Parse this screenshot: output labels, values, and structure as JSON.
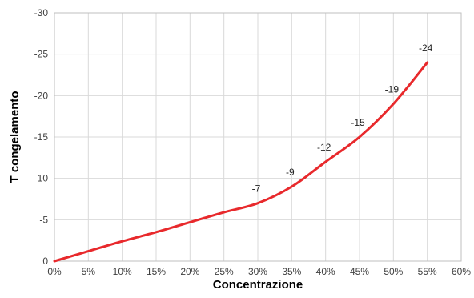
{
  "chart_data": {
    "type": "line",
    "title": "",
    "xlabel": "Concentrazione",
    "ylabel": "T congelamento",
    "x": [
      0,
      5,
      10,
      15,
      20,
      25,
      30,
      35,
      40,
      45,
      50,
      55
    ],
    "x_unit": "%",
    "series": [
      {
        "values": [
          0,
          -1.2,
          -2.4,
          -3.5,
          -4.7,
          -5.9,
          -7,
          -9,
          -12,
          -15,
          -19,
          -24
        ],
        "color": "#e8292c"
      }
    ],
    "data_labels": [
      {
        "x": 30,
        "y": -7,
        "text": "-7"
      },
      {
        "x": 35,
        "y": -9,
        "text": "-9"
      },
      {
        "x": 40,
        "y": -12,
        "text": "-12"
      },
      {
        "x": 45,
        "y": -15,
        "text": "-15"
      },
      {
        "x": 50,
        "y": -19,
        "text": "-19"
      },
      {
        "x": 55,
        "y": -24,
        "text": "-24"
      }
    ],
    "xlim": [
      0,
      60
    ],
    "ylim": [
      0,
      -30
    ],
    "x_ticks": [
      "0%",
      "5%",
      "10%",
      "15%",
      "20%",
      "25%",
      "30%",
      "35%",
      "40%",
      "45%",
      "50%",
      "55%",
      "60%"
    ],
    "y_ticks": [
      "0",
      "-5",
      "-10",
      "-15",
      "-20",
      "-25",
      "-30"
    ],
    "y_inverted": true,
    "grid": true,
    "legend": "none",
    "colors": {
      "line": "#e8292c",
      "grid": "#d9d9d9",
      "frame": "#bfbfbf"
    }
  }
}
